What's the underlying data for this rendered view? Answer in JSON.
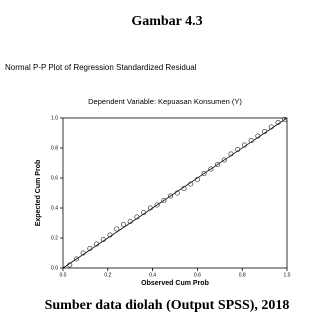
{
  "caption": "Gambar  4.3",
  "source": "Sumber data diolah (Output SPSS), 2018",
  "chart_data": {
    "type": "scatter",
    "title": "Normal P-P Plot of Regression Standardized Residual",
    "subtitle": "Dependent Variable: Kepuasan Konsumen (Y)",
    "x_label": "Observed Cum Prob",
    "y_label": "Expected Cum Prob",
    "xlim": [
      0,
      1
    ],
    "ylim": [
      0,
      1
    ],
    "xticks": [
      {
        "value": 0,
        "label": "0.0"
      },
      {
        "value": 0.2,
        "label": "0.2"
      },
      {
        "value": 0.4,
        "label": "0.4"
      },
      {
        "value": 0.6,
        "label": "0.6"
      },
      {
        "value": 0.8,
        "label": "0.8"
      },
      {
        "value": 1,
        "label": "1.0"
      }
    ],
    "yticks": [
      {
        "value": 0,
        "label": "0.0"
      },
      {
        "value": 0.2,
        "label": "0.2"
      },
      {
        "value": 0.4,
        "label": "0.4"
      },
      {
        "value": 0.6,
        "label": "0.6"
      },
      {
        "value": 0.8,
        "label": "0.8"
      },
      {
        "value": 1,
        "label": "1.0"
      }
    ],
    "x": [
      0.03,
      0.06,
      0.09,
      0.12,
      0.15,
      0.18,
      0.21,
      0.24,
      0.27,
      0.3,
      0.33,
      0.36,
      0.39,
      0.42,
      0.45,
      0.48,
      0.51,
      0.54,
      0.57,
      0.6,
      0.63,
      0.66,
      0.69,
      0.72,
      0.75,
      0.78,
      0.81,
      0.84,
      0.87,
      0.9,
      0.93,
      0.96,
      0.99
    ],
    "values": [
      0.02,
      0.06,
      0.1,
      0.13,
      0.16,
      0.19,
      0.22,
      0.26,
      0.29,
      0.31,
      0.34,
      0.37,
      0.4,
      0.42,
      0.45,
      0.48,
      0.5,
      0.53,
      0.56,
      0.59,
      0.63,
      0.66,
      0.69,
      0.72,
      0.76,
      0.79,
      0.82,
      0.85,
      0.88,
      0.91,
      0.94,
      0.97,
      0.99
    ],
    "color": "#333333"
  }
}
